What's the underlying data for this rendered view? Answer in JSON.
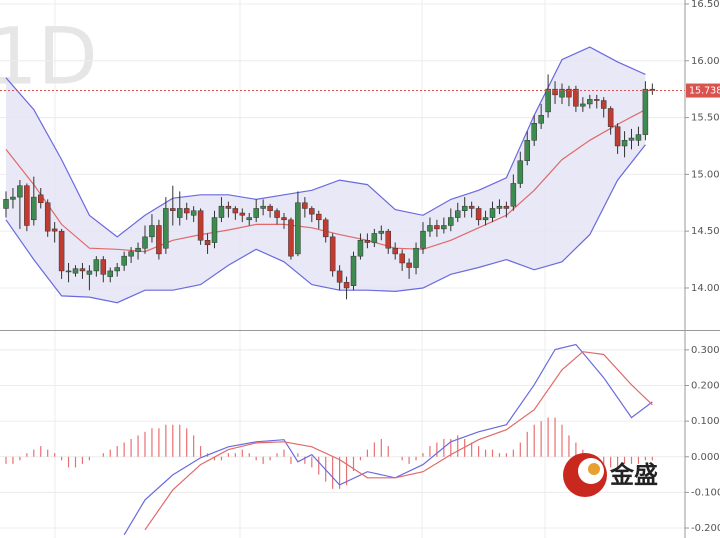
{
  "chart_data": [
    {
      "type": "candlestick",
      "watermark": "1D",
      "up_color": "#3d8b4f",
      "down_color": "#c23b30",
      "band_fill": "#e4e4f4",
      "candles": [
        [
          14.7,
          14.85,
          14.62,
          14.78
        ],
        [
          14.78,
          14.88,
          14.7,
          14.8
        ],
        [
          14.8,
          14.95,
          14.52,
          14.9
        ],
        [
          14.9,
          14.92,
          14.5,
          14.55
        ],
        [
          14.6,
          14.98,
          14.55,
          14.8
        ],
        [
          14.82,
          14.88,
          14.7,
          14.75
        ],
        [
          14.75,
          14.78,
          14.45,
          14.5
        ],
        [
          14.52,
          14.58,
          14.4,
          14.5
        ],
        [
          14.5,
          14.52,
          14.08,
          14.15
        ],
        [
          14.15,
          14.22,
          14.05,
          14.15
        ],
        [
          14.13,
          14.2,
          14.1,
          14.17
        ],
        [
          14.17,
          14.22,
          14.08,
          14.15
        ],
        [
          14.12,
          14.2,
          13.98,
          14.15
        ],
        [
          14.15,
          14.28,
          14.1,
          14.25
        ],
        [
          14.25,
          14.28,
          14.05,
          14.12
        ],
        [
          14.1,
          14.18,
          14.05,
          14.15
        ],
        [
          14.15,
          14.22,
          14.1,
          14.18
        ],
        [
          14.2,
          14.32,
          14.15,
          14.28
        ],
        [
          14.28,
          14.36,
          14.22,
          14.32
        ],
        [
          14.32,
          14.4,
          14.25,
          14.35
        ],
        [
          14.35,
          14.55,
          14.3,
          14.45
        ],
        [
          14.45,
          14.65,
          14.4,
          14.55
        ],
        [
          14.55,
          14.6,
          14.25,
          14.3
        ],
        [
          14.35,
          14.8,
          14.3,
          14.7
        ],
        [
          14.7,
          14.9,
          14.55,
          14.68
        ],
        [
          14.62,
          14.85,
          14.55,
          14.7
        ],
        [
          14.7,
          14.75,
          14.6,
          14.66
        ],
        [
          14.64,
          14.72,
          14.58,
          14.68
        ],
        [
          14.68,
          14.7,
          14.38,
          14.42
        ],
        [
          14.42,
          14.48,
          14.3,
          14.38
        ],
        [
          14.4,
          14.68,
          14.35,
          14.62
        ],
        [
          14.62,
          14.8,
          14.58,
          14.72
        ],
        [
          14.72,
          14.76,
          14.62,
          14.7
        ],
        [
          14.7,
          14.72,
          14.6,
          14.66
        ],
        [
          14.66,
          14.7,
          14.58,
          14.64
        ],
        [
          14.6,
          14.66,
          14.55,
          14.62
        ],
        [
          14.62,
          14.78,
          14.58,
          14.7
        ],
        [
          14.7,
          14.78,
          14.64,
          14.72
        ],
        [
          14.72,
          14.74,
          14.62,
          14.68
        ],
        [
          14.68,
          14.7,
          14.56,
          14.62
        ],
        [
          14.62,
          14.66,
          14.52,
          14.6
        ],
        [
          14.6,
          14.62,
          14.25,
          14.28
        ],
        [
          14.3,
          14.85,
          14.28,
          14.75
        ],
        [
          14.75,
          14.8,
          14.62,
          14.7
        ],
        [
          14.7,
          14.72,
          14.58,
          14.65
        ],
        [
          14.65,
          14.68,
          14.52,
          14.6
        ],
        [
          14.6,
          14.62,
          14.4,
          14.45
        ],
        [
          14.45,
          14.48,
          14.1,
          14.15
        ],
        [
          14.15,
          14.2,
          13.98,
          14.05
        ],
        [
          14.05,
          14.1,
          13.9,
          14.0
        ],
        [
          14.02,
          14.32,
          13.98,
          14.28
        ],
        [
          14.28,
          14.48,
          14.25,
          14.42
        ],
        [
          14.42,
          14.48,
          14.35,
          14.4
        ],
        [
          14.4,
          14.52,
          14.36,
          14.48
        ],
        [
          14.48,
          14.55,
          14.42,
          14.5
        ],
        [
          14.5,
          14.52,
          14.3,
          14.35
        ],
        [
          14.35,
          14.4,
          14.25,
          14.3
        ],
        [
          14.3,
          14.34,
          14.15,
          14.22
        ],
        [
          14.22,
          14.26,
          14.08,
          14.18
        ],
        [
          14.18,
          14.4,
          14.12,
          14.35
        ],
        [
          14.35,
          14.58,
          14.3,
          14.5
        ],
        [
          14.5,
          14.62,
          14.45,
          14.55
        ],
        [
          14.55,
          14.6,
          14.45,
          14.52
        ],
        [
          14.52,
          14.62,
          14.48,
          14.55
        ],
        [
          14.55,
          14.7,
          14.5,
          14.62
        ],
        [
          14.62,
          14.75,
          14.58,
          14.68
        ],
        [
          14.68,
          14.8,
          14.62,
          14.72
        ],
        [
          14.72,
          14.76,
          14.62,
          14.7
        ],
        [
          14.7,
          14.72,
          14.55,
          14.6
        ],
        [
          14.6,
          14.68,
          14.55,
          14.62
        ],
        [
          14.62,
          14.76,
          14.58,
          14.7
        ],
        [
          14.7,
          14.78,
          14.65,
          14.72
        ],
        [
          14.72,
          14.76,
          14.62,
          14.7
        ],
        [
          14.72,
          15.0,
          14.68,
          14.92
        ],
        [
          14.92,
          15.2,
          14.88,
          15.12
        ],
        [
          15.12,
          15.38,
          15.08,
          15.3
        ],
        [
          15.3,
          15.52,
          15.25,
          15.45
        ],
        [
          15.45,
          15.62,
          15.4,
          15.52
        ],
        [
          15.55,
          15.88,
          15.5,
          15.75
        ],
        [
          15.75,
          15.82,
          15.62,
          15.7
        ],
        [
          15.68,
          15.8,
          15.62,
          15.75
        ],
        [
          15.75,
          15.78,
          15.6,
          15.68
        ],
        [
          15.75,
          15.78,
          15.55,
          15.6
        ],
        [
          15.6,
          15.68,
          15.55,
          15.62
        ],
        [
          15.62,
          15.7,
          15.58,
          15.66
        ],
        [
          15.66,
          15.7,
          15.58,
          15.65
        ],
        [
          15.65,
          15.68,
          15.5,
          15.58
        ],
        [
          15.58,
          15.6,
          15.35,
          15.42
        ],
        [
          15.42,
          15.45,
          15.18,
          15.25
        ],
        [
          15.25,
          15.38,
          15.15,
          15.3
        ],
        [
          15.3,
          15.4,
          15.22,
          15.32
        ],
        [
          15.3,
          15.42,
          15.25,
          15.35
        ],
        [
          15.35,
          15.82,
          15.3,
          15.75
        ],
        [
          15.75,
          15.8,
          15.7,
          15.738
        ]
      ],
      "lines": [
        {
          "color": "#6a6ae0",
          "x": [
            0,
            4,
            8,
            12,
            16,
            20,
            24,
            28,
            32,
            36,
            40,
            44,
            48,
            52,
            56,
            60,
            64,
            68,
            72,
            76,
            80,
            84,
            88,
            92
          ],
          "values": [
            15.85,
            15.57,
            15.13,
            14.64,
            14.45,
            14.64,
            14.79,
            14.82,
            14.82,
            14.78,
            14.82,
            14.86,
            14.95,
            14.91,
            14.69,
            14.64,
            14.78,
            14.86,
            14.97,
            15.52,
            16.01,
            16.12,
            15.99,
            15.88
          ]
        },
        {
          "color": "#e06a6a",
          "x": [
            0,
            4,
            8,
            12,
            16,
            20,
            24,
            28,
            32,
            36,
            40,
            44,
            48,
            52,
            56,
            60,
            64,
            68,
            72,
            76,
            80,
            84,
            88,
            92
          ],
          "values": [
            15.22,
            14.91,
            14.56,
            14.35,
            14.34,
            14.32,
            14.42,
            14.47,
            14.51,
            14.56,
            14.56,
            14.53,
            14.47,
            14.42,
            14.35,
            14.34,
            14.42,
            14.53,
            14.64,
            14.86,
            15.13,
            15.3,
            15.44,
            15.57
          ]
        },
        {
          "color": "#6a6ae0",
          "x": [
            0,
            4,
            8,
            12,
            16,
            20,
            24,
            28,
            32,
            36,
            40,
            44,
            48,
            52,
            56,
            60,
            64,
            68,
            72,
            76,
            80,
            84,
            88,
            92
          ],
          "values": [
            14.6,
            14.25,
            13.93,
            13.92,
            13.87,
            13.98,
            13.98,
            14.03,
            14.2,
            14.34,
            14.23,
            14.03,
            13.98,
            13.98,
            13.97,
            14.0,
            14.12,
            14.18,
            14.25,
            14.16,
            14.23,
            14.47,
            14.95,
            15.26
          ]
        }
      ],
      "last_price": 15.738,
      "last_price_color": "#d9534f",
      "ylim": [
        13.63,
        16.535
      ],
      "yticks": [
        {
          "value": 16.5,
          "label": "16.500"
        },
        {
          "value": 16.0,
          "label": "16.000"
        },
        {
          "value": 15.5,
          "label": "15.500"
        },
        {
          "value": 15.0,
          "label": "15.000"
        },
        {
          "value": 14.5,
          "label": "14.500"
        },
        {
          "value": 14.0,
          "label": "14.000"
        }
      ],
      "grid": true
    },
    {
      "type": "macd",
      "histogram_color": "#e87070",
      "histogram": [
        -0.02,
        -0.02,
        -0.01,
        0.01,
        0.02,
        0.03,
        0.02,
        0.01,
        -0.01,
        -0.03,
        -0.03,
        -0.02,
        -0.01,
        0.0,
        0.01,
        0.02,
        0.03,
        0.04,
        0.05,
        0.06,
        0.07,
        0.08,
        0.08,
        0.09,
        0.09,
        0.09,
        0.08,
        0.06,
        0.03,
        0.01,
        -0.01,
        -0.01,
        0.01,
        0.01,
        0.02,
        0.01,
        -0.01,
        -0.02,
        -0.01,
        0.01,
        0.02,
        -0.02,
        0.01,
        -0.02,
        -0.03,
        -0.05,
        -0.07,
        -0.09,
        -0.09,
        -0.08,
        -0.04,
        -0.01,
        0.02,
        0.04,
        0.05,
        0.03,
        0.0,
        -0.01,
        -0.02,
        -0.01,
        0.01,
        0.03,
        0.04,
        0.05,
        0.05,
        0.06,
        0.05,
        0.04,
        0.03,
        0.02,
        0.02,
        0.01,
        0.01,
        0.02,
        0.04,
        0.07,
        0.09,
        0.1,
        0.11,
        0.11,
        0.09,
        0.06,
        0.04,
        0.02,
        -0.01,
        -0.02,
        -0.03,
        -0.03,
        -0.03,
        -0.02,
        -0.02,
        -0.02,
        -0.01,
        -0.01
      ],
      "lines": [
        {
          "color": "#6a6ae0",
          "x": [
            17,
            20,
            24,
            28,
            32,
            36,
            40,
            42,
            44,
            48,
            52,
            56,
            60,
            64,
            68,
            72,
            76,
            79,
            82,
            86,
            90,
            93
          ],
          "values": [
            -0.219,
            -0.121,
            -0.051,
            -0.003,
            0.028,
            0.042,
            0.048,
            -0.014,
            0.006,
            -0.079,
            -0.042,
            -0.059,
            -0.022,
            0.042,
            0.07,
            0.09,
            0.202,
            0.301,
            0.315,
            0.222,
            0.11,
            0.154
          ]
        },
        {
          "color": "#e06a6a",
          "x": [
            20,
            24,
            28,
            32,
            36,
            40,
            44,
            48,
            52,
            56,
            60,
            64,
            68,
            72,
            76,
            80,
            83,
            86,
            90,
            93
          ],
          "values": [
            -0.205,
            -0.093,
            -0.022,
            0.02,
            0.039,
            0.042,
            0.028,
            -0.008,
            -0.059,
            -0.059,
            -0.042,
            0.006,
            0.048,
            0.076,
            0.132,
            0.244,
            0.295,
            0.287,
            0.202,
            0.146
          ]
        }
      ],
      "ylim": [
        -0.228,
        0.353
      ],
      "yticks": [
        {
          "value": 0.3,
          "label": "0.3000"
        },
        {
          "value": 0.2,
          "label": "0.2000"
        },
        {
          "value": 0.1,
          "label": "0.1000"
        },
        {
          "value": 0.0,
          "label": "0.0000"
        },
        {
          "value": -0.1,
          "label": "-0.1000"
        },
        {
          "value": -0.2,
          "label": "-0.2000"
        }
      ],
      "grid": true
    }
  ],
  "logo": "金盛"
}
